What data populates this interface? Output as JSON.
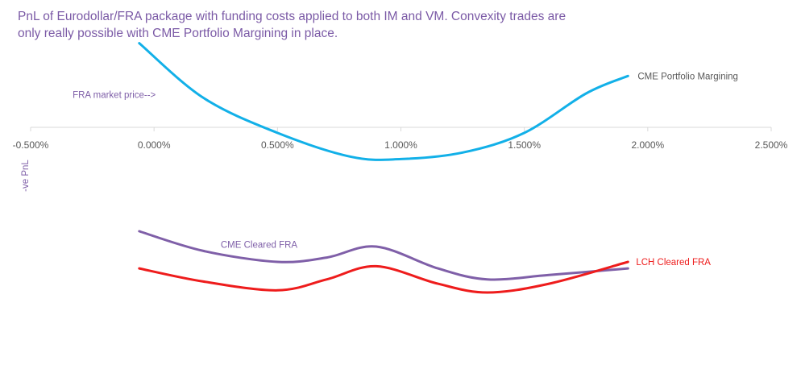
{
  "title_lines": [
    "PnL of Eurodollar/FRA package with funding costs applied to both IM and VM. Convexity trades are",
    "only really possible with CME Portfolio Margining in place."
  ],
  "chart_data": {
    "type": "line",
    "title": "PnL of Eurodollar/FRA package with funding costs applied to both IM and VM. Convexity trades are only really possible with CME Portfolio Margining in place.",
    "xlabel": "",
    "ylabel": "-ve PnL",
    "x_ticks": [
      "-0.500%",
      "0.000%",
      "0.500%",
      "1.000%",
      "1.500%",
      "2.000%",
      "2.500%"
    ],
    "x_tick_values": [
      -0.5,
      0.0,
      0.5,
      1.0,
      1.5,
      2.0,
      2.5
    ],
    "xlim": [
      -0.5,
      2.5
    ],
    "ylim": [
      -100,
      40
    ],
    "y_axis_hidden": true,
    "grid": false,
    "annotations": [
      {
        "text": "FRA market price-->",
        "near_x": -0.33,
        "near_y": 10
      }
    ],
    "series": [
      {
        "name": "CME Portfolio Margining",
        "color": "#12b0e8",
        "x": [
          -0.06,
          0.2,
          0.5,
          0.8,
          1.0,
          1.25,
          1.5,
          1.75,
          1.92
        ],
        "y": [
          35.0,
          10.0,
          -6.0,
          -17.0,
          -18.0,
          -15.0,
          -6.0,
          12.0,
          20.0
        ]
      },
      {
        "name": "CME Cleared FRA",
        "color": "#7f5fa8",
        "x": [
          -0.06,
          0.2,
          0.5,
          0.7,
          0.9,
          1.15,
          1.35,
          1.6,
          1.92
        ],
        "y": [
          -51.0,
          -60.0,
          -65.0,
          -63.0,
          -58.0,
          -68.0,
          -73.0,
          -71.0,
          -68.0
        ]
      },
      {
        "name": "LCH Cleared FRA",
        "color": "#ee1c1c",
        "x": [
          -0.06,
          0.2,
          0.5,
          0.7,
          0.9,
          1.15,
          1.35,
          1.6,
          1.92
        ],
        "y": [
          -68.0,
          -74.0,
          -78.0,
          -73.0,
          -67.0,
          -75.0,
          -79.0,
          -75.0,
          -65.0
        ]
      }
    ]
  }
}
